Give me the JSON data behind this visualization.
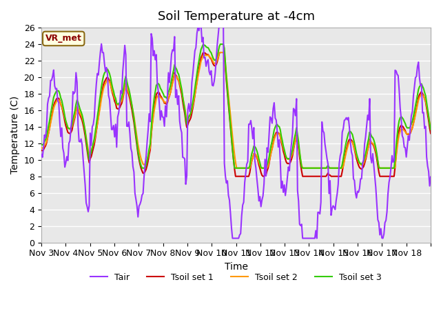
{
  "title": "Soil Temperature at -4cm",
  "xlabel": "Time",
  "ylabel": "Temperature (C)",
  "ylim": [
    0,
    26
  ],
  "yticks": [
    0,
    2,
    4,
    6,
    8,
    10,
    12,
    14,
    16,
    18,
    20,
    22,
    24,
    26
  ],
  "xtick_positions": [
    0,
    1,
    2,
    3,
    4,
    5,
    6,
    7,
    8,
    9,
    10,
    11,
    12,
    13,
    14,
    15,
    16
  ],
  "xtick_labels": [
    "Nov 3",
    "Nov 4",
    "Nov 5",
    "Nov 6",
    "Nov 7",
    "Nov 8",
    "Nov 9",
    "Nov 10",
    "Nov 11",
    "Nov 12",
    "Nov 13",
    "Nov 14",
    "Nov 15",
    "Nov 16",
    "Nov 17",
    "Nov 18",
    ""
  ],
  "colors": {
    "Tair": "#9933FF",
    "Tsoil1": "#CC0000",
    "Tsoil2": "#FF9900",
    "Tsoil3": "#33CC00"
  },
  "bg_color": "#E8E8E8",
  "legend_label": "VR_met",
  "line_width": 1.5,
  "title_fontsize": 13,
  "axis_fontsize": 10,
  "tick_fontsize": 9
}
